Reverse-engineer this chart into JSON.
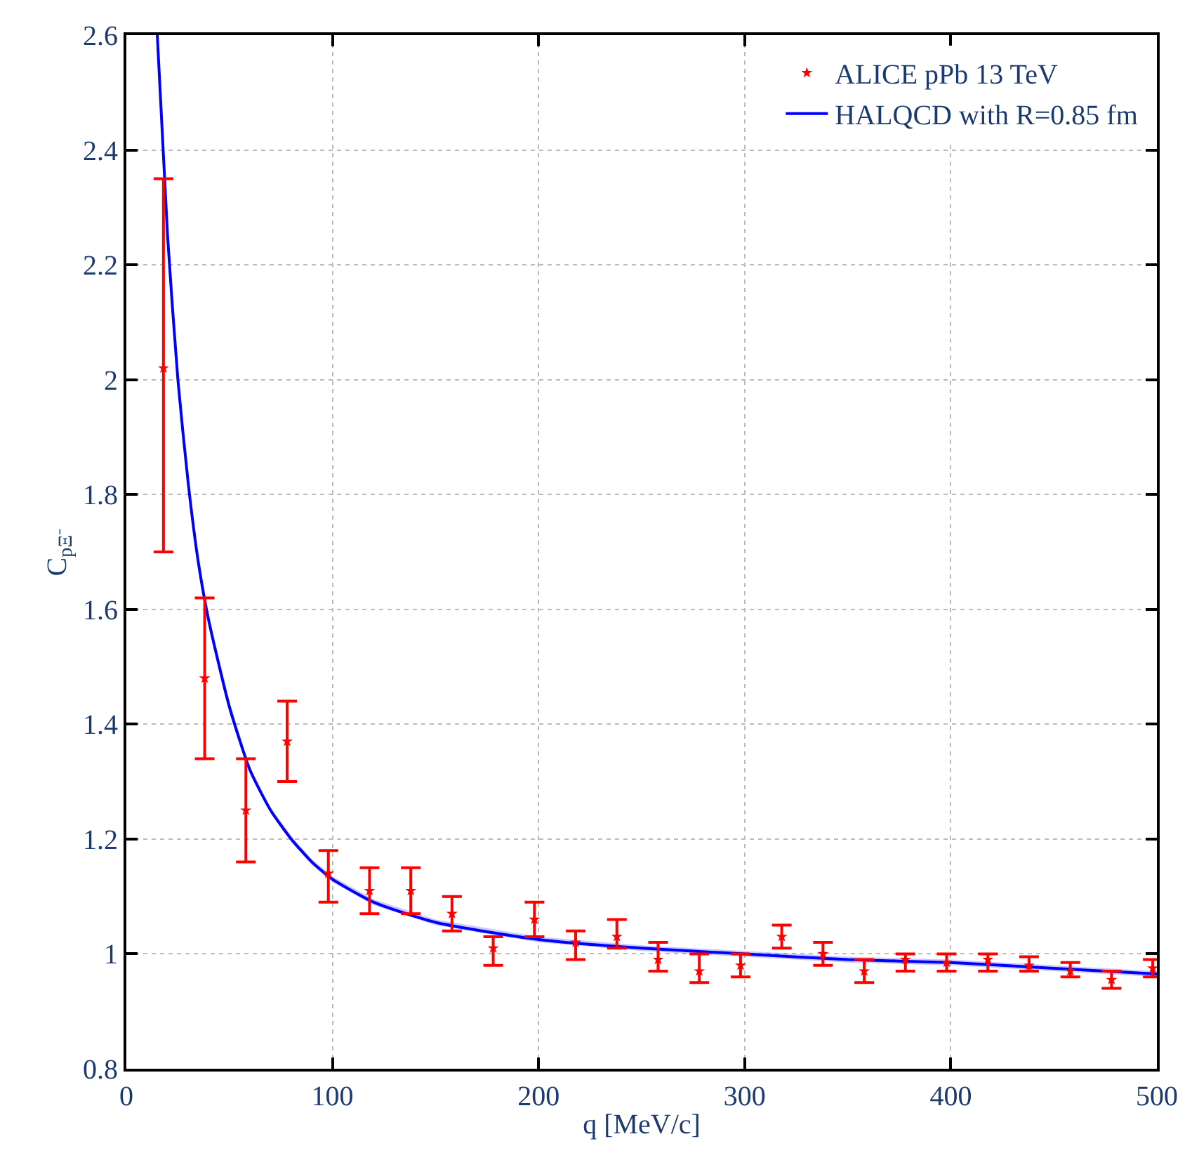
{
  "chart_data": {
    "type": "scatter",
    "xlabel": "q [MeV/c]",
    "ylabel": "C$_{pΞ⁻}$",
    "xlim": [
      0,
      500
    ],
    "xticks": [
      0,
      100,
      200,
      300,
      400,
      500
    ],
    "ylim": [
      0.8,
      2.6
    ],
    "yticks": [
      0.8,
      1,
      1.2,
      1.4,
      1.6,
      1.8,
      2,
      2.2,
      2.4,
      2.6
    ],
    "grid": true,
    "legend": "top right",
    "series": [
      {
        "name": "HALQCD with R=0.85 fm",
        "type": "line",
        "color": "#0000ff",
        "line_style": "solid",
        "marker": "none",
        "x": [
          15,
          20,
          25,
          30,
          35,
          40,
          50,
          60,
          70,
          80,
          90,
          100,
          120,
          150,
          200,
          250,
          300,
          350,
          400,
          450,
          500
        ],
        "values": [
          2.6,
          2.25,
          2.0,
          1.82,
          1.68,
          1.58,
          1.43,
          1.32,
          1.25,
          1.2,
          1.16,
          1.13,
          1.09,
          1.055,
          1.025,
          1.01,
          1.0,
          0.99,
          0.985,
          0.975,
          0.965
        ],
        "lower": [
          2.57,
          2.23,
          1.98,
          1.81,
          1.67,
          1.57,
          1.42,
          1.315,
          1.245,
          1.195,
          1.155,
          1.125,
          1.085,
          1.05,
          1.02,
          1.005,
          0.995,
          0.985,
          0.98,
          0.97,
          0.96
        ],
        "upper": [
          2.6,
          2.27,
          2.02,
          1.83,
          1.69,
          1.59,
          1.44,
          1.325,
          1.255,
          1.205,
          1.165,
          1.135,
          1.095,
          1.06,
          1.03,
          1.015,
          1.005,
          0.995,
          0.99,
          0.98,
          0.97
        ]
      },
      {
        "name": "ALICE pPb 13 TeV",
        "color": "#ff0000",
        "marker": "star",
        "x": [
          18,
          38,
          58,
          78,
          98,
          118,
          138,
          158,
          178,
          198,
          218,
          238,
          258,
          278,
          298,
          318,
          338,
          358,
          378,
          398,
          418,
          438,
          458,
          478,
          498
        ],
        "values": [
          2.02,
          1.48,
          1.25,
          1.37,
          1.14,
          1.11,
          1.11,
          1.07,
          1.01,
          1.06,
          1.02,
          1.03,
          0.99,
          0.97,
          0.98,
          1.03,
          1.0,
          0.97,
          0.99,
          0.985,
          0.99,
          0.98,
          0.97,
          0.955,
          0.975
        ],
        "errors": [
          [
            1.7,
            2.35
          ],
          [
            1.34,
            1.62
          ],
          [
            1.16,
            1.34
          ],
          [
            1.3,
            1.44
          ],
          [
            1.09,
            1.18
          ],
          [
            1.07,
            1.15
          ],
          [
            1.07,
            1.15
          ],
          [
            1.04,
            1.1
          ],
          [
            0.98,
            1.03
          ],
          [
            1.03,
            1.09
          ],
          [
            0.99,
            1.04
          ],
          [
            1.01,
            1.06
          ],
          [
            0.97,
            1.02
          ],
          [
            0.95,
            1.0
          ],
          [
            0.96,
            1.0
          ],
          [
            1.01,
            1.05
          ],
          [
            0.98,
            1.02
          ],
          [
            0.95,
            0.99
          ],
          [
            0.97,
            1.0
          ],
          [
            0.97,
            1.0
          ],
          [
            0.97,
            1.0
          ],
          [
            0.97,
            0.995
          ],
          [
            0.96,
            0.985
          ],
          [
            0.94,
            0.97
          ],
          [
            0.96,
            0.99
          ]
        ]
      }
    ]
  }
}
